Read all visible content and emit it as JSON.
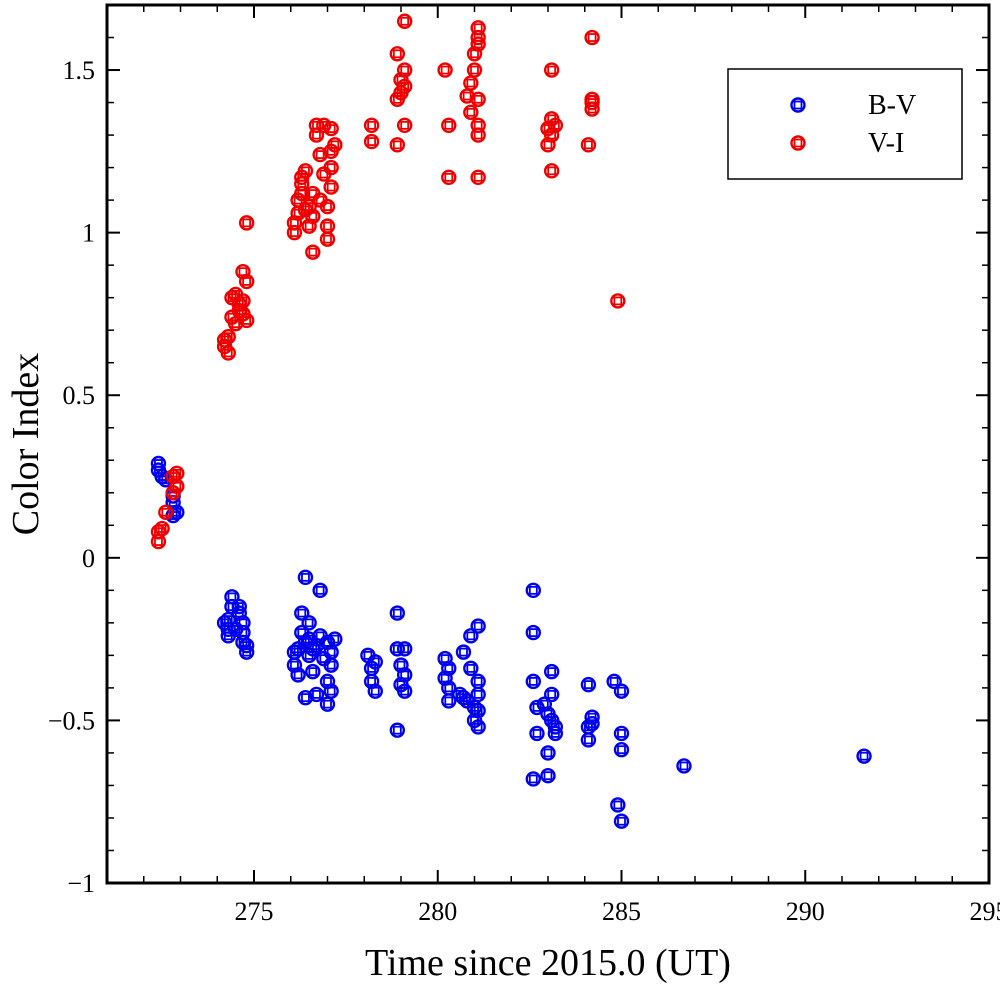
{
  "chart_data": {
    "type": "scatter",
    "title": "",
    "xlabel": "Time since 2015.0 (UT)",
    "ylabel": "Color Index",
    "xlim": [
      271,
      295
    ],
    "ylim": [
      -1,
      1.7
    ],
    "xticks": [
      275,
      280,
      285,
      290,
      295
    ],
    "xtick_labels": [
      "275",
      "280",
      "285",
      "290",
      "295"
    ],
    "yticks": [
      -1,
      -0.5,
      0,
      0.5,
      1,
      1.5
    ],
    "ytick_labels": [
      "−1",
      "−0.5",
      "0",
      "0.5",
      "1",
      "1.5"
    ],
    "grid": false,
    "legend_position": "top-right",
    "series": [
      {
        "name": "B-V",
        "color": "#0000ee",
        "marker": "circle-open",
        "points": [
          [
            272.4,
            0.29
          ],
          [
            272.4,
            0.27
          ],
          [
            272.5,
            0.25
          ],
          [
            272.6,
            0.24
          ],
          [
            272.8,
            0.19
          ],
          [
            272.8,
            0.17
          ],
          [
            272.9,
            0.14
          ],
          [
            272.8,
            0.13
          ],
          [
            274.2,
            -0.2
          ],
          [
            274.3,
            -0.22
          ],
          [
            274.3,
            -0.19
          ],
          [
            274.3,
            -0.24
          ],
          [
            274.4,
            -0.12
          ],
          [
            274.4,
            -0.15
          ],
          [
            274.5,
            -0.22
          ],
          [
            274.6,
            -0.15
          ],
          [
            274.6,
            -0.17
          ],
          [
            274.7,
            -0.2
          ],
          [
            274.7,
            -0.23
          ],
          [
            274.7,
            -0.26
          ],
          [
            274.8,
            -0.27
          ],
          [
            274.8,
            -0.29
          ],
          [
            276.1,
            -0.29
          ],
          [
            276.1,
            -0.33
          ],
          [
            276.2,
            -0.28
          ],
          [
            276.2,
            -0.36
          ],
          [
            276.3,
            -0.17
          ],
          [
            276.3,
            -0.23
          ],
          [
            276.4,
            -0.06
          ],
          [
            276.4,
            -0.26
          ],
          [
            276.4,
            -0.43
          ],
          [
            276.5,
            -0.2
          ],
          [
            276.5,
            -0.3
          ],
          [
            276.5,
            -0.25
          ],
          [
            276.6,
            -0.28
          ],
          [
            276.6,
            -0.35
          ],
          [
            276.7,
            -0.42
          ],
          [
            276.7,
            -0.27
          ],
          [
            276.8,
            -0.1
          ],
          [
            276.8,
            -0.24
          ],
          [
            276.9,
            -0.31
          ],
          [
            277.0,
            -0.26
          ],
          [
            277.0,
            -0.38
          ],
          [
            277.0,
            -0.45
          ],
          [
            277.1,
            -0.29
          ],
          [
            277.1,
            -0.33
          ],
          [
            277.1,
            -0.41
          ],
          [
            277.2,
            -0.25
          ],
          [
            278.1,
            -0.3
          ],
          [
            278.2,
            -0.34
          ],
          [
            278.2,
            -0.38
          ],
          [
            278.3,
            -0.41
          ],
          [
            278.3,
            -0.32
          ],
          [
            278.9,
            -0.17
          ],
          [
            278.9,
            -0.28
          ],
          [
            278.9,
            -0.53
          ],
          [
            279.0,
            -0.33
          ],
          [
            279.0,
            -0.39
          ],
          [
            279.1,
            -0.28
          ],
          [
            279.1,
            -0.36
          ],
          [
            279.1,
            -0.41
          ],
          [
            280.2,
            -0.31
          ],
          [
            280.2,
            -0.37
          ],
          [
            280.3,
            -0.34
          ],
          [
            280.3,
            -0.4
          ],
          [
            280.3,
            -0.44
          ],
          [
            280.6,
            -0.42
          ],
          [
            280.7,
            -0.29
          ],
          [
            280.7,
            -0.43
          ],
          [
            280.8,
            -0.44
          ],
          [
            280.9,
            -0.24
          ],
          [
            280.9,
            -0.34
          ],
          [
            281.0,
            -0.46
          ],
          [
            281.0,
            -0.5
          ],
          [
            281.1,
            -0.21
          ],
          [
            281.1,
            -0.38
          ],
          [
            281.1,
            -0.42
          ],
          [
            281.1,
            -0.47
          ],
          [
            281.1,
            -0.52
          ],
          [
            282.6,
            -0.1
          ],
          [
            282.6,
            -0.23
          ],
          [
            282.6,
            -0.38
          ],
          [
            282.7,
            -0.46
          ],
          [
            282.7,
            -0.54
          ],
          [
            282.6,
            -0.68
          ],
          [
            282.9,
            -0.45
          ],
          [
            283.0,
            -0.6
          ],
          [
            283.0,
            -0.67
          ],
          [
            283.0,
            -0.48
          ],
          [
            283.1,
            -0.35
          ],
          [
            283.1,
            -0.42
          ],
          [
            283.1,
            -0.5
          ],
          [
            283.2,
            -0.52
          ],
          [
            283.2,
            -0.54
          ],
          [
            284.1,
            -0.39
          ],
          [
            284.1,
            -0.52
          ],
          [
            284.1,
            -0.56
          ],
          [
            284.2,
            -0.49
          ],
          [
            284.2,
            -0.51
          ],
          [
            284.8,
            -0.38
          ],
          [
            284.9,
            -0.76
          ],
          [
            285.0,
            -0.81
          ],
          [
            285.0,
            -0.41
          ],
          [
            285.0,
            -0.54
          ],
          [
            285.0,
            -0.59
          ],
          [
            286.7,
            -0.64
          ],
          [
            291.6,
            -0.61
          ]
        ]
      },
      {
        "name": "V-I",
        "color": "#ee0000",
        "marker": "circle-open",
        "points": [
          [
            272.4,
            0.05
          ],
          [
            272.4,
            0.08
          ],
          [
            272.5,
            0.09
          ],
          [
            272.6,
            0.14
          ],
          [
            272.8,
            0.2
          ],
          [
            272.8,
            0.25
          ],
          [
            272.9,
            0.26
          ],
          [
            272.9,
            0.22
          ],
          [
            274.2,
            0.67
          ],
          [
            274.2,
            0.65
          ],
          [
            274.3,
            0.63
          ],
          [
            274.3,
            0.68
          ],
          [
            274.4,
            0.74
          ],
          [
            274.4,
            0.8
          ],
          [
            274.5,
            0.81
          ],
          [
            274.5,
            0.72
          ],
          [
            274.6,
            0.76
          ],
          [
            274.6,
            0.78
          ],
          [
            274.7,
            0.75
          ],
          [
            274.7,
            0.79
          ],
          [
            274.7,
            0.88
          ],
          [
            274.8,
            0.85
          ],
          [
            274.8,
            0.73
          ],
          [
            274.8,
            1.03
          ],
          [
            276.1,
            1.0
          ],
          [
            276.1,
            1.03
          ],
          [
            276.2,
            1.06
          ],
          [
            276.2,
            1.1
          ],
          [
            276.3,
            1.12
          ],
          [
            276.3,
            1.15
          ],
          [
            276.3,
            1.17
          ],
          [
            276.4,
            1.07
          ],
          [
            276.4,
            1.19
          ],
          [
            276.5,
            1.02
          ],
          [
            276.5,
            1.08
          ],
          [
            276.6,
            0.94
          ],
          [
            276.6,
            1.12
          ],
          [
            276.6,
            1.05
          ],
          [
            276.7,
            1.33
          ],
          [
            276.7,
            1.3
          ],
          [
            276.8,
            1.1
          ],
          [
            276.8,
            1.24
          ],
          [
            276.9,
            1.33
          ],
          [
            276.9,
            1.18
          ],
          [
            277.0,
            0.98
          ],
          [
            277.0,
            1.02
          ],
          [
            277.0,
            1.08
          ],
          [
            277.1,
            1.14
          ],
          [
            277.1,
            1.25
          ],
          [
            277.1,
            1.32
          ],
          [
            277.1,
            1.2
          ],
          [
            277.2,
            1.27
          ],
          [
            278.2,
            1.28
          ],
          [
            278.2,
            1.33
          ],
          [
            278.9,
            1.27
          ],
          [
            278.9,
            1.41
          ],
          [
            278.9,
            1.55
          ],
          [
            279.0,
            1.43
          ],
          [
            279.0,
            1.47
          ],
          [
            279.1,
            1.45
          ],
          [
            279.1,
            1.5
          ],
          [
            279.1,
            1.33
          ],
          [
            279.1,
            1.65
          ],
          [
            280.2,
            1.5
          ],
          [
            280.3,
            1.33
          ],
          [
            280.3,
            1.17
          ],
          [
            280.8,
            1.42
          ],
          [
            280.9,
            1.37
          ],
          [
            280.9,
            1.46
          ],
          [
            281.0,
            1.5
          ],
          [
            281.0,
            1.55
          ],
          [
            281.1,
            1.41
          ],
          [
            281.1,
            1.33
          ],
          [
            281.1,
            1.3
          ],
          [
            281.1,
            1.17
          ],
          [
            281.1,
            1.58
          ],
          [
            281.1,
            1.6
          ],
          [
            281.1,
            1.63
          ],
          [
            283.0,
            1.27
          ],
          [
            283.0,
            1.32
          ],
          [
            283.1,
            1.35
          ],
          [
            283.1,
            1.5
          ],
          [
            283.1,
            1.3
          ],
          [
            283.1,
            1.19
          ],
          [
            283.2,
            1.33
          ],
          [
            284.1,
            1.27
          ],
          [
            284.2,
            1.38
          ],
          [
            284.2,
            1.4
          ],
          [
            284.2,
            1.41
          ],
          [
            284.2,
            1.6
          ],
          [
            284.9,
            0.79
          ]
        ]
      }
    ]
  }
}
